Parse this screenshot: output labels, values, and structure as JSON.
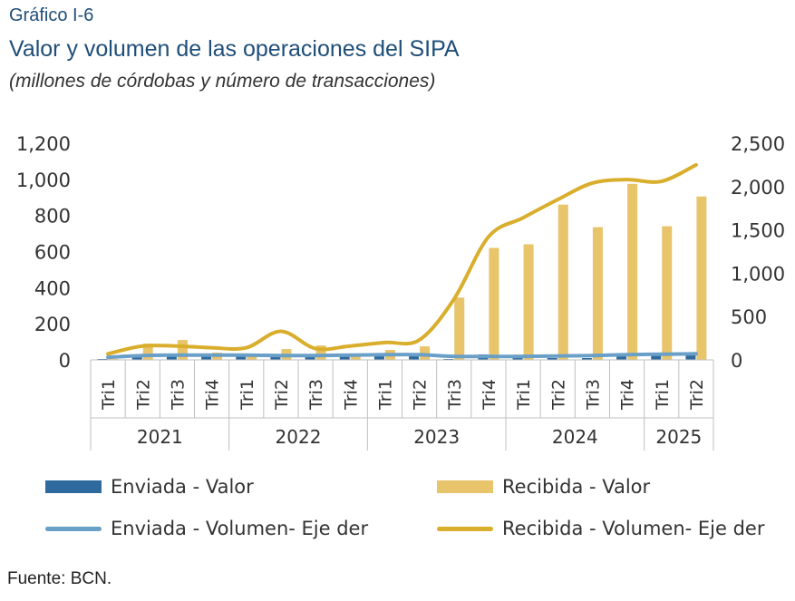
{
  "header": {
    "figure_label": "Gráfico I-6",
    "title": "Valor y volumen de las operaciones del SIPA",
    "subtitle": "(millones de córdobas y número de transacciones)"
  },
  "source": "Fuente: BCN.",
  "colors": {
    "enviada_valor": "#2e6a9e",
    "recibida_valor": "#e8c46a",
    "enviada_volumen": "#6a9fc8",
    "recibida_volumen": "#d9ae2c",
    "axis": "#bfbfbf"
  },
  "chart_data": {
    "type": "bar",
    "quarters": [
      "Tri1",
      "Tri2",
      "Tri3",
      "Tri4",
      "Tri1",
      "Tri2",
      "Tri3",
      "Tri4",
      "Tri1",
      "Tri2",
      "Tri3",
      "Tri4",
      "Tri1",
      "Tri2",
      "Tri3",
      "Tri4",
      "Tri1",
      "Tri2"
    ],
    "years": [
      {
        "label": "2021",
        "count": 4
      },
      {
        "label": "2022",
        "count": 4
      },
      {
        "label": "2023",
        "count": 4
      },
      {
        "label": "2024",
        "count": 4
      },
      {
        "label": "2025",
        "count": 2
      }
    ],
    "y_left": {
      "min": 0,
      "max": 1200,
      "ticks": [
        "0",
        "200",
        "400",
        "600",
        "800",
        "1,000",
        "1,200"
      ],
      "tick_values": [
        0,
        200,
        400,
        600,
        800,
        1000,
        1200
      ]
    },
    "y_right": {
      "min": 0,
      "max": 2500,
      "ticks": [
        "0",
        "500",
        "1,000",
        "1,500",
        "2,000",
        "2,500"
      ],
      "tick_values": [
        0,
        500,
        1000,
        1500,
        2000,
        2500
      ]
    },
    "series": [
      {
        "name": "Enviada - Valor",
        "kind": "bar",
        "axis": "left",
        "values": [
          5,
          30,
          30,
          35,
          25,
          25,
          25,
          30,
          35,
          20,
          5,
          30,
          15,
          10,
          10,
          20,
          30,
          25
        ]
      },
      {
        "name": "Recibida - Valor",
        "kind": "bar",
        "axis": "left",
        "values": [
          5,
          90,
          110,
          40,
          20,
          60,
          80,
          20,
          55,
          75,
          345,
          620,
          640,
          860,
          735,
          975,
          740,
          905
        ]
      },
      {
        "name": "Enviada - Volumen- Eje der",
        "kind": "line",
        "axis": "right",
        "values": [
          30,
          50,
          55,
          55,
          55,
          50,
          50,
          55,
          60,
          60,
          40,
          40,
          40,
          45,
          50,
          60,
          65,
          70
        ]
      },
      {
        "name": "Recibida - Volumen- Eje der",
        "kind": "line",
        "axis": "right",
        "values": [
          70,
          160,
          160,
          140,
          140,
          330,
          130,
          160,
          200,
          230,
          700,
          1420,
          1640,
          1850,
          2040,
          2080,
          2060,
          2250
        ]
      }
    ],
    "legend_position": "bottom"
  }
}
